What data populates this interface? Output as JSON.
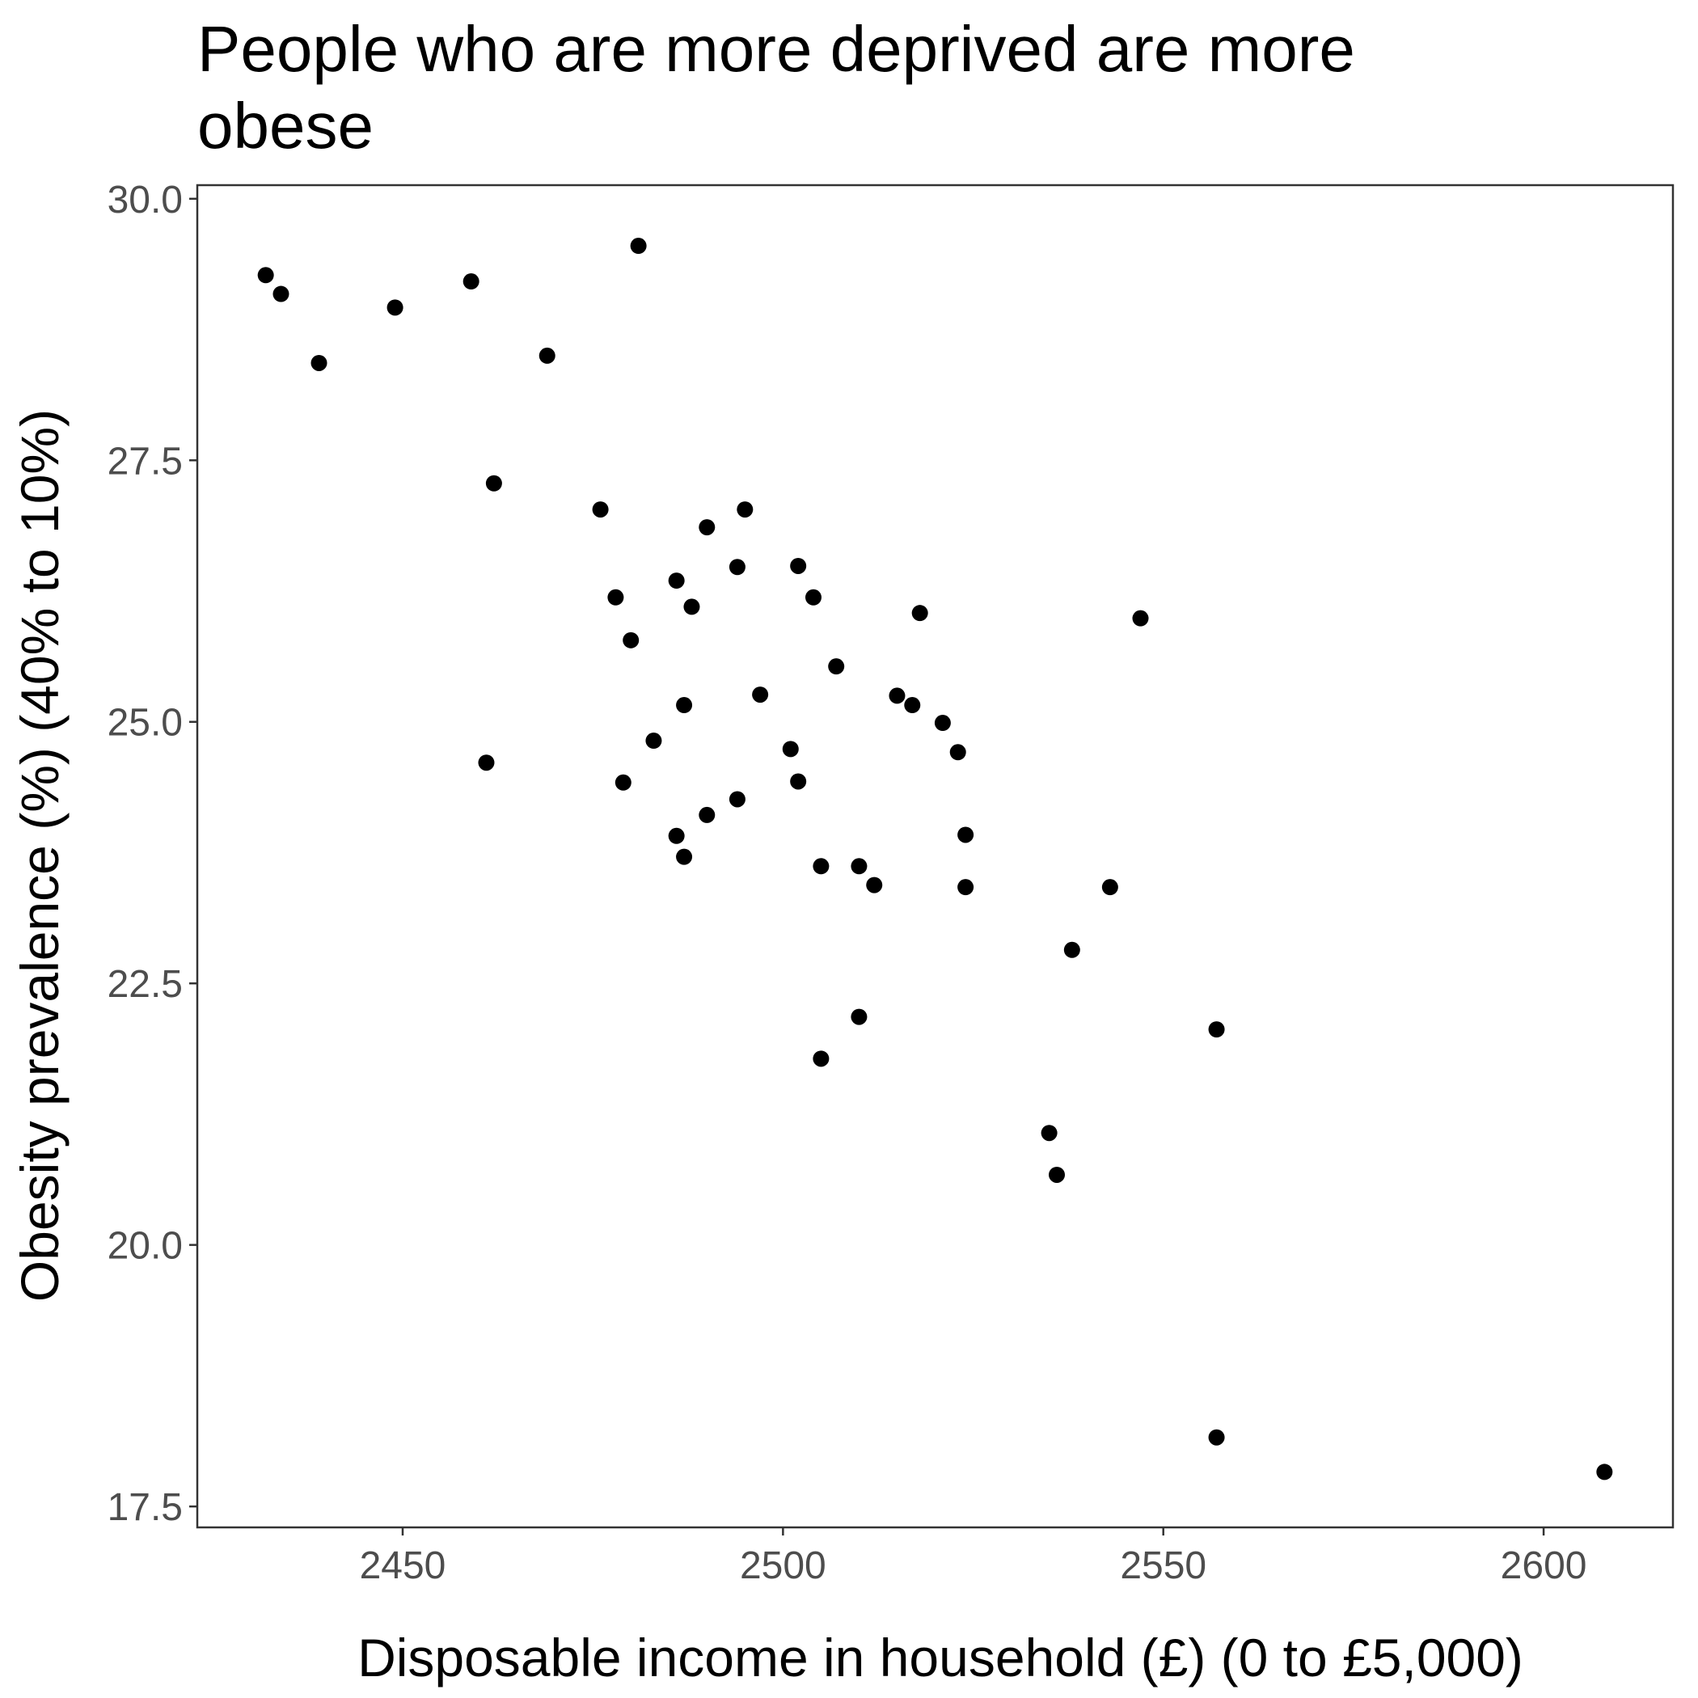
{
  "chart_data": {
    "type": "scatter",
    "title_lines": [
      "People who are more deprived are more",
      "obese"
    ],
    "xlabel": "Disposable income in household (£) (0 to £5,000)",
    "ylabel": "Obesity prevalence (%) (40% to 10%)",
    "xlim": [
      2423,
      2617
    ],
    "ylim": [
      17.3,
      30.13
    ],
    "x_ticks": [
      2450,
      2500,
      2550,
      2600
    ],
    "x_tick_labels": [
      "2450",
      "2500",
      "2550",
      "2600"
    ],
    "y_ticks": [
      17.5,
      20.0,
      22.5,
      25.0,
      27.5,
      30.0
    ],
    "y_tick_labels": [
      "17.5",
      "20.0",
      "22.5",
      "25.0",
      "27.5",
      "30.0"
    ],
    "grid": false,
    "point_color": "#000000",
    "points": [
      {
        "x": 2432,
        "y": 29.27
      },
      {
        "x": 2434,
        "y": 29.09
      },
      {
        "x": 2439,
        "y": 28.43
      },
      {
        "x": 2449,
        "y": 28.96
      },
      {
        "x": 2459,
        "y": 29.21
      },
      {
        "x": 2469,
        "y": 28.5
      },
      {
        "x": 2462,
        "y": 27.28
      },
      {
        "x": 2461,
        "y": 24.61
      },
      {
        "x": 2476,
        "y": 27.03
      },
      {
        "x": 2481,
        "y": 29.55
      },
      {
        "x": 2478,
        "y": 26.19
      },
      {
        "x": 2480,
        "y": 25.78
      },
      {
        "x": 2479,
        "y": 24.42
      },
      {
        "x": 2483,
        "y": 24.82
      },
      {
        "x": 2486,
        "y": 26.35
      },
      {
        "x": 2488,
        "y": 26.1
      },
      {
        "x": 2487,
        "y": 25.16
      },
      {
        "x": 2490,
        "y": 26.86
      },
      {
        "x": 2495,
        "y": 27.03
      },
      {
        "x": 2494,
        "y": 26.48
      },
      {
        "x": 2497,
        "y": 25.26
      },
      {
        "x": 2494,
        "y": 24.26
      },
      {
        "x": 2490,
        "y": 24.11
      },
      {
        "x": 2486,
        "y": 23.91
      },
      {
        "x": 2487,
        "y": 23.71
      },
      {
        "x": 2502,
        "y": 26.49
      },
      {
        "x": 2504,
        "y": 26.19
      },
      {
        "x": 2507,
        "y": 25.53
      },
      {
        "x": 2501,
        "y": 24.74
      },
      {
        "x": 2502,
        "y": 24.43
      },
      {
        "x": 2505,
        "y": 23.62
      },
      {
        "x": 2510,
        "y": 23.62
      },
      {
        "x": 2512,
        "y": 23.44
      },
      {
        "x": 2510,
        "y": 22.18
      },
      {
        "x": 2505,
        "y": 21.78
      },
      {
        "x": 2515,
        "y": 25.25
      },
      {
        "x": 2517,
        "y": 25.16
      },
      {
        "x": 2518,
        "y": 26.04
      },
      {
        "x": 2521,
        "y": 24.99
      },
      {
        "x": 2523,
        "y": 24.71
      },
      {
        "x": 2524,
        "y": 23.92
      },
      {
        "x": 2524,
        "y": 23.42
      },
      {
        "x": 2547,
        "y": 25.99
      },
      {
        "x": 2543,
        "y": 23.42
      },
      {
        "x": 2538,
        "y": 22.82
      },
      {
        "x": 2535,
        "y": 21.07
      },
      {
        "x": 2536,
        "y": 20.67
      },
      {
        "x": 2557,
        "y": 22.06
      },
      {
        "x": 2557,
        "y": 18.16
      },
      {
        "x": 2608,
        "y": 17.83
      }
    ]
  }
}
